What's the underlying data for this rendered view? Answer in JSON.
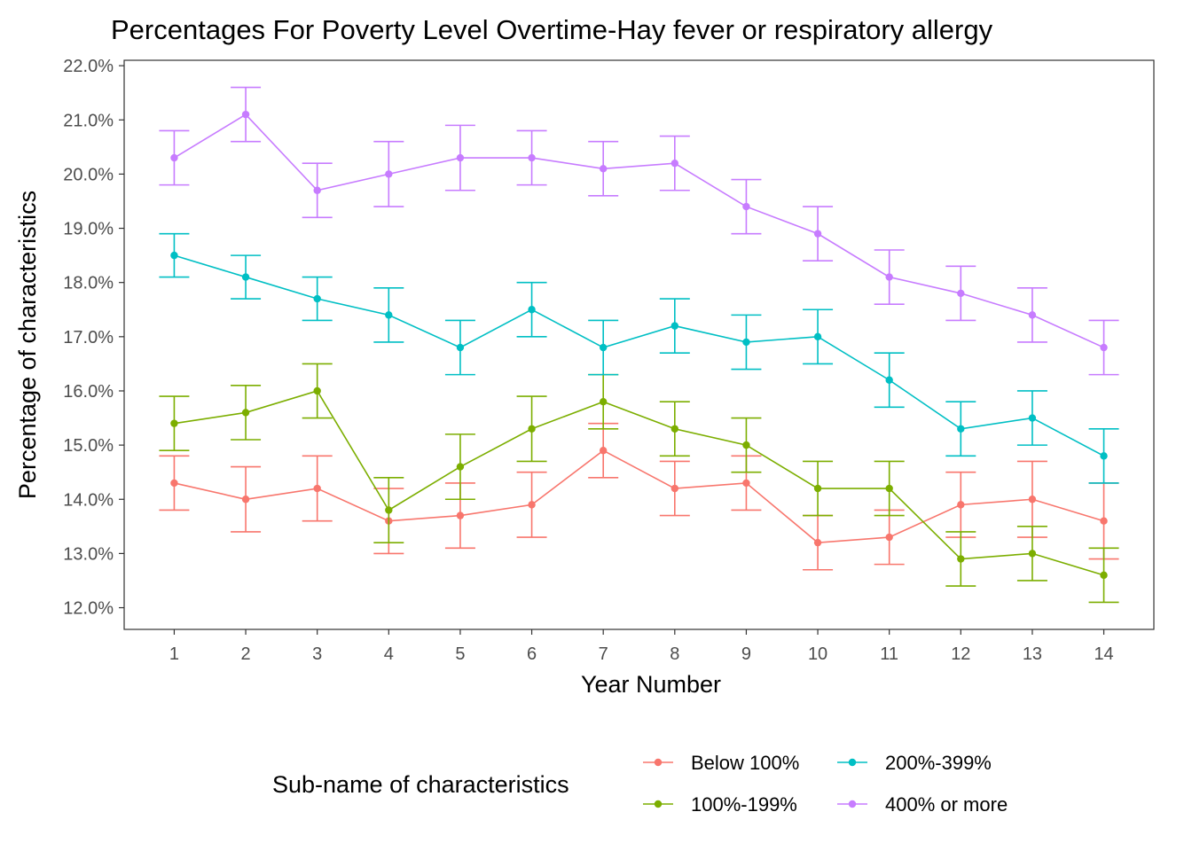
{
  "chart_data": {
    "type": "line",
    "title": "Percentages For Poverty Level Overtime-Hay fever or respiratory allergy",
    "xlabel": "Year Number",
    "ylabel": "Percentage of characteristics",
    "x": [
      1,
      2,
      3,
      4,
      5,
      6,
      7,
      8,
      9,
      10,
      11,
      12,
      13,
      14
    ],
    "x_tick_labels": [
      "1",
      "2",
      "3",
      "4",
      "5",
      "6",
      "7",
      "8",
      "9",
      "10",
      "11",
      "12",
      "13",
      "14"
    ],
    "xlim": [
      0.3,
      14.7
    ],
    "ylim": [
      11.6,
      22.1
    ],
    "y_ticks": [
      12,
      13,
      14,
      15,
      16,
      17,
      18,
      19,
      20,
      21,
      22
    ],
    "y_tick_labels": [
      "12.0%",
      "13.0%",
      "14.0%",
      "15.0%",
      "16.0%",
      "17.0%",
      "18.0%",
      "19.0%",
      "20.0%",
      "21.0%",
      "22.0%"
    ],
    "grid": false,
    "error_bars": true,
    "legend": {
      "title": "Sub-name of characteristics",
      "position": "bottom"
    },
    "series": [
      {
        "name": "Below 100%",
        "color": "#F8766D",
        "values": [
          14.3,
          14.0,
          14.2,
          13.6,
          13.7,
          13.9,
          14.9,
          14.2,
          14.3,
          13.2,
          13.3,
          13.9,
          14.0,
          13.6
        ],
        "lower": [
          13.8,
          13.4,
          13.6,
          13.0,
          13.1,
          13.3,
          14.4,
          13.7,
          13.8,
          12.7,
          12.8,
          13.3,
          13.3,
          12.9
        ],
        "upper": [
          14.8,
          14.6,
          14.8,
          14.2,
          14.3,
          14.5,
          15.4,
          14.7,
          14.8,
          13.7,
          13.8,
          14.5,
          14.7,
          14.3
        ]
      },
      {
        "name": "100%-199%",
        "color": "#7CAE00",
        "values": [
          15.4,
          15.6,
          16.0,
          13.8,
          14.6,
          15.3,
          15.8,
          15.3,
          15.0,
          14.2,
          14.2,
          12.9,
          13.0,
          12.6
        ],
        "lower": [
          14.9,
          15.1,
          15.5,
          13.2,
          14.0,
          14.7,
          15.3,
          14.8,
          14.5,
          13.7,
          13.7,
          12.4,
          12.5,
          12.1
        ],
        "upper": [
          15.9,
          16.1,
          16.5,
          14.4,
          15.2,
          15.9,
          16.3,
          15.8,
          15.5,
          14.7,
          14.7,
          13.4,
          13.5,
          13.1
        ]
      },
      {
        "name": "200%-399%",
        "color": "#00BFC4",
        "values": [
          18.5,
          18.1,
          17.7,
          17.4,
          16.8,
          17.5,
          16.8,
          17.2,
          16.9,
          17.0,
          16.2,
          15.3,
          15.5,
          14.8
        ],
        "lower": [
          18.1,
          17.7,
          17.3,
          16.9,
          16.3,
          17.0,
          16.3,
          16.7,
          16.4,
          16.5,
          15.7,
          14.8,
          15.0,
          14.3
        ],
        "upper": [
          18.9,
          18.5,
          18.1,
          17.9,
          17.3,
          18.0,
          17.3,
          17.7,
          17.4,
          17.5,
          16.7,
          15.8,
          16.0,
          15.3
        ]
      },
      {
        "name": "400% or more",
        "color": "#C77CFF",
        "values": [
          20.3,
          21.1,
          19.7,
          20.0,
          20.3,
          20.3,
          20.1,
          20.2,
          19.4,
          18.9,
          18.1,
          17.8,
          17.4,
          16.8
        ],
        "lower": [
          19.8,
          20.6,
          19.2,
          19.4,
          19.7,
          19.8,
          19.6,
          19.7,
          18.9,
          18.4,
          17.6,
          17.3,
          16.9,
          16.3
        ],
        "upper": [
          20.8,
          21.6,
          20.2,
          20.6,
          20.9,
          20.8,
          20.6,
          20.7,
          19.9,
          19.4,
          18.6,
          18.3,
          17.9,
          17.3
        ]
      }
    ]
  }
}
